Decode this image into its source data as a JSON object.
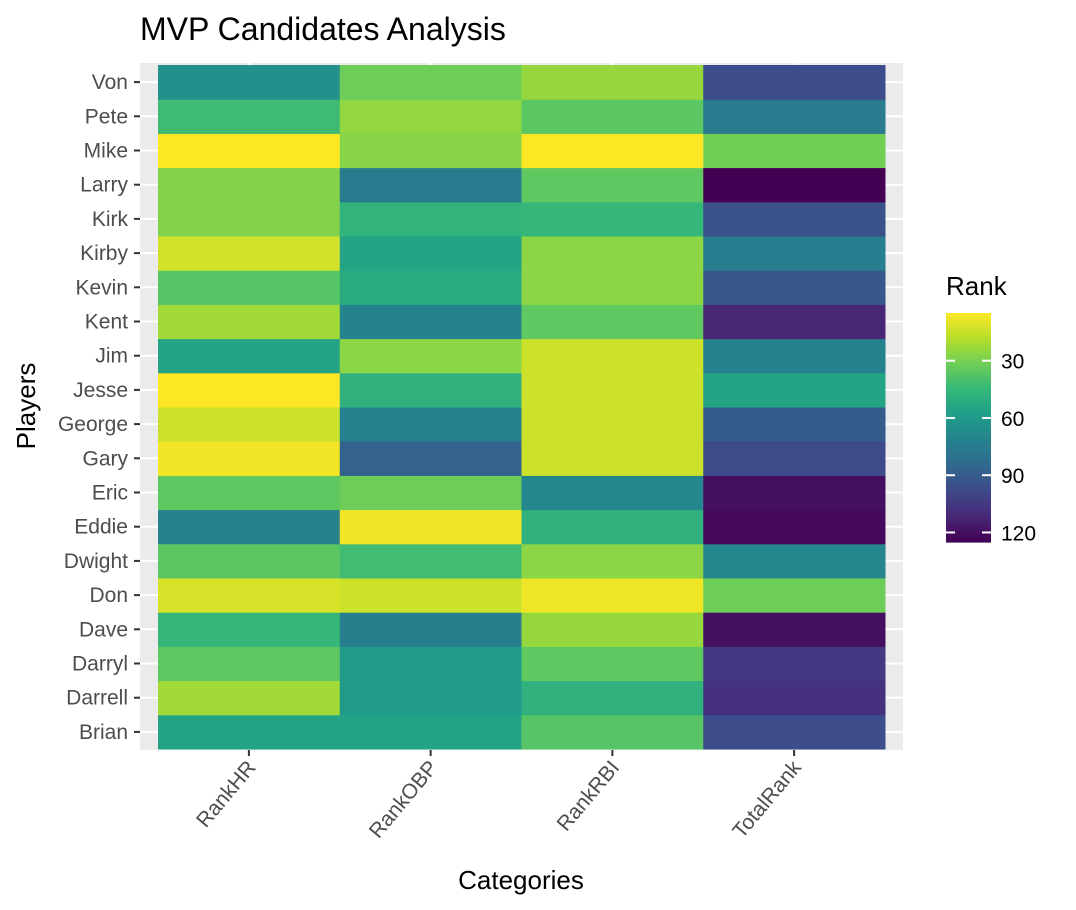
{
  "chart_data": {
    "type": "heatmap",
    "title": "MVP Candidates Analysis",
    "xlabel": "Categories",
    "ylabel": "Players",
    "categories": [
      "RankHR",
      "RankOBP",
      "RankRBI",
      "TotalRank"
    ],
    "players": [
      "Brian",
      "Darrell",
      "Darryl",
      "Dave",
      "Don",
      "Dwight",
      "Eddie",
      "Eric",
      "Gary",
      "George",
      "Jesse",
      "Jim",
      "Kent",
      "Kevin",
      "Kirby",
      "Kirk",
      "Larry",
      "Mike",
      "Pete",
      "Von"
    ],
    "values": [
      [
        55,
        55,
        37,
        97
      ],
      [
        22,
        60,
        48,
        108
      ],
      [
        35,
        60,
        35,
        105
      ],
      [
        45,
        73,
        24,
        120
      ],
      [
        12,
        14,
        8,
        32
      ],
      [
        36,
        42,
        26,
        70
      ],
      [
        71,
        7,
        48,
        122
      ],
      [
        35,
        32,
        70,
        120
      ],
      [
        7,
        87,
        14,
        98
      ],
      [
        14,
        72,
        14,
        90
      ],
      [
        2,
        48,
        14,
        55
      ],
      [
        55,
        26,
        14,
        72
      ],
      [
        22,
        71,
        35,
        112
      ],
      [
        37,
        52,
        26,
        92
      ],
      [
        13,
        55,
        26,
        74
      ],
      [
        28,
        47,
        45,
        95
      ],
      [
        28,
        75,
        35,
        125
      ],
      [
        4,
        27,
        3,
        31
      ],
      [
        43,
        25,
        36,
        75
      ],
      [
        65,
        32,
        24,
        97
      ]
    ],
    "color_scale": {
      "name": "Rank",
      "type": "viridis",
      "reversed": true,
      "domain": [
        5,
        125
      ],
      "breaks": [
        30,
        60,
        90,
        120
      ]
    },
    "legend_position": "right",
    "grid": true
  }
}
